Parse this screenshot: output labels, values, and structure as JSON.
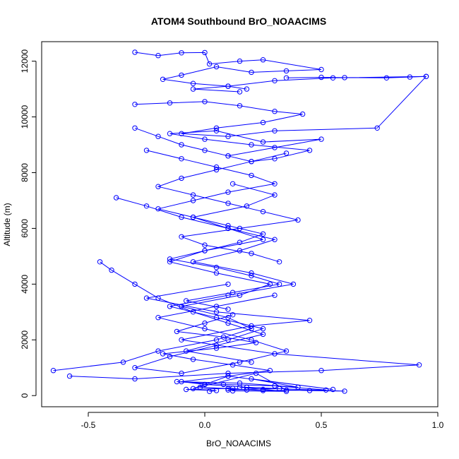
{
  "chart_data": {
    "type": "line",
    "title": "ATOM4 Southbound BrO_NOAACIMS",
    "xlabel": "BrO_NOAACIMS",
    "ylabel": "Altitude (m)",
    "xlim": [
      -0.7,
      1.0
    ],
    "ylim": [
      -400,
      12700
    ],
    "x_ticks": [
      -0.5,
      0.0,
      0.5,
      1.0
    ],
    "x_tick_labels": [
      "-0.5",
      "0.0",
      "0.5",
      "1.0"
    ],
    "y_ticks": [
      0,
      2000,
      4000,
      6000,
      8000,
      10000,
      12000
    ],
    "y_tick_labels": [
      "0",
      "2000",
      "4000",
      "6000",
      "8000",
      "10000",
      "12000"
    ],
    "grid": false,
    "legend": "none",
    "line_color": "#0000ff",
    "marker": "open-circle",
    "series": [
      {
        "x": [
          0.02,
          0.05,
          -0.08,
          0.12,
          0.18,
          -0.02,
          0.1,
          0.25,
          0.52,
          0.3,
          0.08,
          -0.12,
          0.15,
          0.4,
          0.2,
          0.55,
          0.1,
          -0.05,
          0.22,
          0.35,
          0.45,
          0.6,
          0.15,
          0.25,
          0.35,
          0.12
        ],
        "y": [
          150,
          180,
          220,
          260,
          200,
          300,
          250,
          180,
          200,
          350,
          400,
          500,
          450,
          300,
          600,
          220,
          700,
          250,
          800,
          200,
          180,
          160,
          300,
          220,
          150,
          170
        ]
      },
      {
        "x": [
          -0.65,
          -0.35,
          -0.2,
          0.05,
          0.2,
          0.1,
          -0.1,
          0.15,
          0.28,
          0.05,
          -0.15,
          0.0,
          0.25,
          0.1,
          -0.05,
          0.18,
          0.3,
          0.12
        ],
        "y": [
          900,
          1200,
          1600,
          2000,
          2400,
          2800,
          3200,
          3600,
          4000,
          4400,
          4800,
          5200,
          5600,
          6000,
          6400,
          6800,
          7200,
          7600
        ]
      },
      {
        "x": [
          -0.58,
          -0.3,
          0.1,
          0.5,
          0.92,
          0.3,
          -0.1,
          0.2,
          0.45,
          0.05,
          -0.25,
          0.1
        ],
        "y": [
          700,
          600,
          800,
          900,
          1100,
          1500,
          2000,
          2500,
          2700,
          3000,
          3500,
          4000
        ]
      },
      {
        "x": [
          -0.45,
          -0.4,
          -0.3,
          -0.2,
          -0.05,
          0.1,
          0.25,
          0.05,
          -0.15,
          -0.3,
          -0.1,
          0.15,
          0.35,
          0.2,
          0.0,
          -0.2,
          0.05,
          0.3
        ],
        "y": [
          4800,
          4500,
          4000,
          3500,
          3000,
          2600,
          2200,
          1800,
          1400,
          1000,
          800,
          1200,
          1600,
          2000,
          2400,
          2800,
          3200,
          3600
        ]
      },
      {
        "x": [
          -0.38,
          -0.25,
          -0.1,
          0.1,
          0.3,
          0.15,
          -0.05,
          0.2,
          0.38,
          0.1,
          -0.15,
          0.05,
          0.25,
          0.1,
          -0.08,
          0.2
        ],
        "y": [
          7100,
          6800,
          6400,
          6000,
          5600,
          5200,
          4800,
          4400,
          4000,
          3600,
          3200,
          2800,
          2400,
          2000,
          1600,
          1200
        ]
      },
      {
        "x": [
          0.35,
          0.2,
          0.05,
          -0.1,
          -0.2,
          -0.05,
          0.1,
          0.25,
          0.4,
          0.15,
          -0.1,
          0.0,
          0.2,
          0.32
        ],
        "y": [
          8700,
          8400,
          8100,
          7800,
          7500,
          7200,
          6900,
          6600,
          6300,
          6000,
          5700,
          5400,
          5100,
          4800
        ]
      },
      {
        "x": [
          -0.3,
          -0.2,
          -0.1,
          0.0,
          0.1,
          0.2,
          0.3,
          0.45,
          0.2,
          0.0,
          -0.15,
          0.05,
          0.25,
          0.5,
          0.3,
          0.1
        ],
        "y": [
          9600,
          9300,
          9000,
          8800,
          8600,
          8400,
          8500,
          8800,
          9000,
          9200,
          9400,
          9500,
          9100,
          9200,
          8900,
          8600
        ]
      },
      {
        "x": [
          -0.3,
          -0.15,
          0.0,
          0.15,
          0.3,
          0.42,
          0.25,
          0.05,
          -0.1,
          0.1,
          0.3,
          0.74,
          0.95
        ],
        "y": [
          10450,
          10500,
          10550,
          10400,
          10200,
          10100,
          9800,
          9600,
          9400,
          9300,
          9500,
          9600,
          11450
        ]
      },
      {
        "x": [
          0.35,
          0.5,
          0.6,
          0.78,
          0.88,
          0.95,
          0.55,
          0.3,
          0.1,
          -0.05,
          0.15
        ],
        "y": [
          11400,
          11420,
          11410,
          11400,
          11430,
          11450,
          11400,
          11300,
          11100,
          11000,
          10900
        ]
      },
      {
        "x": [
          -0.3,
          -0.2,
          -0.1,
          0.0,
          0.02,
          0.15,
          0.25,
          0.5,
          0.35,
          0.2,
          0.05,
          -0.1,
          -0.18,
          -0.05,
          0.1,
          0.18
        ],
        "y": [
          12320,
          12200,
          12300,
          12310,
          11900,
          12000,
          12050,
          11700,
          11650,
          11600,
          11800,
          11500,
          11350,
          11200,
          11100,
          11000
        ]
      },
      {
        "x": [
          -0.25,
          -0.1,
          0.05,
          0.2,
          0.3,
          0.1,
          -0.05,
          -0.2,
          -0.05,
          0.1,
          0.25,
          0.15,
          0.0,
          -0.15,
          0.05,
          0.2,
          0.32,
          0.12,
          -0.08,
          0.1
        ],
        "y": [
          8800,
          8500,
          8200,
          7900,
          7600,
          7300,
          7000,
          6700,
          6400,
          6100,
          5800,
          5500,
          5200,
          4900,
          4600,
          4300,
          4000,
          3700,
          3400,
          3100
        ]
      },
      {
        "x": [
          0.12,
          0.0,
          -0.12,
          0.08,
          0.22,
          0.05,
          -0.18,
          -0.05,
          0.12,
          0.28,
          0.1,
          -0.1,
          0.0,
          0.18,
          0.32,
          0.1
        ],
        "y": [
          2900,
          2600,
          2300,
          2100,
          1900,
          1700,
          1500,
          1300,
          1100,
          900,
          700,
          500,
          400,
          300,
          250,
          200
        ]
      }
    ]
  }
}
